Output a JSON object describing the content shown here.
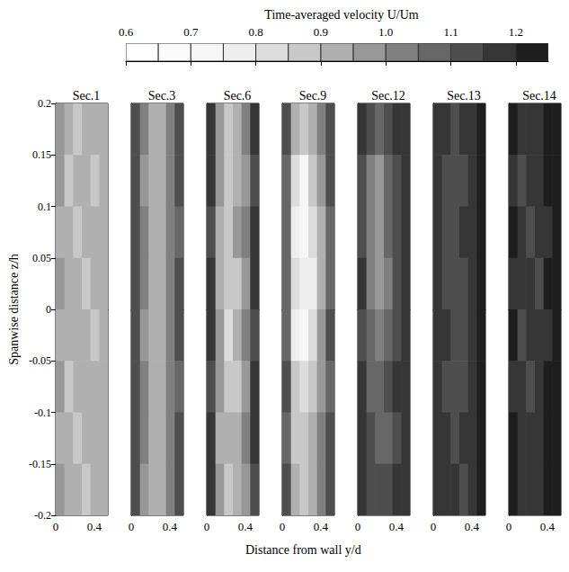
{
  "chart_data": {
    "type": "heatmap",
    "title": "Time-averaged velocity U/Um",
    "xlabel": "Distance from wall y/d",
    "ylabel": "Spanwise distance z/h",
    "xlim": [
      0,
      0.54
    ],
    "xticks": [
      0,
      0.4
    ],
    "ylim": [
      -0.2,
      0.2
    ],
    "yticks": [
      0.2,
      0.15,
      0.1,
      0.05,
      0,
      -0.05,
      -0.1,
      -0.15,
      -0.2
    ],
    "colorbar": {
      "range": [
        0.6,
        1.25
      ],
      "ticks": [
        0.6,
        0.7,
        0.8,
        0.9,
        {
          "value": 1,
          "label": "1.0"
        },
        1.1,
        1.2
      ],
      "levels": [
        0.6,
        0.65,
        0.7,
        0.75,
        0.8,
        0.85,
        0.9,
        0.95,
        1,
        1.05,
        1.1,
        1.15,
        1.2,
        1.25
      ],
      "colors": [
        "#ffffff",
        "#fbfbfb",
        "#f6f6f6",
        "#eeeeee",
        "#dddddd",
        "#c8c8c8",
        "#b0b0b0",
        "#989898",
        "#808080",
        "#676767",
        "#4e4e4e",
        "#363636",
        "#1e1e1e"
      ]
    },
    "y": [
      0.045,
      0.135,
      0.225,
      0.315,
      0.405,
      0.495
    ],
    "z": [
      0.175,
      0.125,
      0.075,
      0.025,
      -0.025,
      -0.075,
      -0.125,
      -0.175
    ],
    "panels": [
      {
        "title": "Sec.1",
        "values": [
          [
            0.95,
            0.9,
            0.88,
            0.9,
            0.9,
            0.92
          ],
          [
            0.95,
            0.88,
            0.9,
            0.92,
            0.88,
            0.9
          ],
          [
            0.93,
            0.9,
            0.87,
            0.9,
            0.9,
            0.93
          ],
          [
            0.95,
            0.92,
            0.9,
            0.88,
            0.9,
            0.9
          ],
          [
            0.94,
            0.9,
            0.9,
            0.9,
            0.87,
            0.92
          ],
          [
            0.95,
            0.88,
            0.92,
            0.9,
            0.9,
            0.9
          ],
          [
            0.93,
            0.9,
            0.88,
            0.9,
            0.92,
            0.93
          ],
          [
            0.95,
            0.9,
            0.9,
            0.87,
            0.9,
            0.9
          ]
        ]
      },
      {
        "title": "Sec.3",
        "values": [
          [
            1.1,
            1.0,
            0.92,
            0.92,
            1.0,
            1.1
          ],
          [
            1.12,
            0.98,
            0.9,
            0.93,
            1.02,
            1.1
          ],
          [
            1.1,
            1.0,
            0.93,
            0.9,
            1.0,
            1.08
          ],
          [
            1.12,
            1.0,
            0.92,
            0.92,
            1.0,
            1.1
          ],
          [
            1.1,
            0.98,
            0.9,
            0.93,
            1.02,
            1.1
          ],
          [
            1.1,
            1.0,
            0.93,
            0.92,
            1.0,
            1.08
          ],
          [
            1.12,
            1.0,
            0.9,
            0.92,
            1.0,
            1.1
          ],
          [
            1.1,
            0.98,
            0.92,
            0.93,
            1.02,
            1.1
          ]
        ]
      },
      {
        "title": "Sec.6",
        "values": [
          [
            1.15,
            0.98,
            0.88,
            0.92,
            1.0,
            1.15
          ],
          [
            1.15,
            0.95,
            0.85,
            0.9,
            0.98,
            1.12
          ],
          [
            1.12,
            0.92,
            0.88,
            0.95,
            1.0,
            1.15
          ],
          [
            1.15,
            0.9,
            0.85,
            0.88,
            0.95,
            1.15
          ],
          [
            1.15,
            0.95,
            0.82,
            0.9,
            1.0,
            1.12
          ],
          [
            1.12,
            0.98,
            0.88,
            0.85,
            0.95,
            1.15
          ],
          [
            1.15,
            0.92,
            0.9,
            0.92,
            1.0,
            1.15
          ],
          [
            1.15,
            0.95,
            0.88,
            0.9,
            0.98,
            1.12
          ]
        ]
      },
      {
        "title": "Sec.9",
        "values": [
          [
            1.1,
            0.9,
            0.85,
            0.9,
            1.0,
            1.1
          ],
          [
            1.05,
            0.8,
            0.72,
            0.85,
            0.95,
            1.1
          ],
          [
            1.05,
            0.75,
            0.7,
            0.8,
            0.9,
            1.05
          ],
          [
            1.08,
            0.82,
            0.75,
            0.78,
            0.92,
            1.08
          ],
          [
            1.05,
            0.78,
            0.72,
            0.82,
            0.95,
            1.1
          ],
          [
            1.1,
            0.85,
            0.8,
            0.85,
            0.95,
            1.08
          ],
          [
            1.08,
            0.88,
            0.85,
            0.9,
            1.0,
            1.1
          ],
          [
            1.1,
            0.9,
            0.88,
            0.9,
            1.0,
            1.1
          ]
        ]
      },
      {
        "title": "Sec.12",
        "values": [
          [
            1.15,
            1.1,
            1.05,
            1.1,
            1.15,
            1.18
          ],
          [
            1.12,
            1.0,
            0.95,
            1.05,
            1.12,
            1.18
          ],
          [
            1.12,
            1.0,
            0.98,
            1.05,
            1.1,
            1.15
          ],
          [
            1.15,
            1.02,
            0.95,
            1.0,
            1.12,
            1.18
          ],
          [
            1.12,
            1.05,
            1.0,
            1.05,
            1.1,
            1.15
          ],
          [
            1.15,
            1.08,
            1.05,
            1.1,
            1.15,
            1.18
          ],
          [
            1.15,
            1.1,
            1.05,
            1.08,
            1.12,
            1.18
          ],
          [
            1.15,
            1.12,
            1.1,
            1.12,
            1.15,
            1.18
          ]
        ]
      },
      {
        "title": "Sec.13",
        "values": [
          [
            1.18,
            1.15,
            1.12,
            1.15,
            1.18,
            1.2
          ],
          [
            1.18,
            1.12,
            1.1,
            1.12,
            1.15,
            1.2
          ],
          [
            1.15,
            1.1,
            1.12,
            1.15,
            1.18,
            1.2
          ],
          [
            1.18,
            1.12,
            1.1,
            1.12,
            1.15,
            1.2
          ],
          [
            1.18,
            1.15,
            1.12,
            1.1,
            1.15,
            1.2
          ],
          [
            1.15,
            1.12,
            1.1,
            1.12,
            1.18,
            1.2
          ],
          [
            1.18,
            1.15,
            1.12,
            1.15,
            1.15,
            1.2
          ],
          [
            1.18,
            1.15,
            1.15,
            1.12,
            1.18,
            1.2
          ]
        ]
      },
      {
        "title": "Sec.14",
        "values": [
          [
            1.2,
            1.15,
            1.15,
            1.18,
            1.2,
            1.22
          ],
          [
            1.18,
            1.12,
            1.15,
            1.15,
            1.2,
            1.22
          ],
          [
            1.2,
            1.15,
            1.12,
            1.15,
            1.18,
            1.22
          ],
          [
            1.18,
            1.15,
            1.15,
            1.12,
            1.2,
            1.22
          ],
          [
            1.2,
            1.12,
            1.15,
            1.15,
            1.18,
            1.22
          ],
          [
            1.18,
            1.15,
            1.12,
            1.18,
            1.2,
            1.22
          ],
          [
            1.2,
            1.15,
            1.15,
            1.15,
            1.2,
            1.22
          ],
          [
            1.2,
            1.18,
            1.15,
            1.18,
            1.2,
            1.22
          ]
        ]
      }
    ]
  }
}
